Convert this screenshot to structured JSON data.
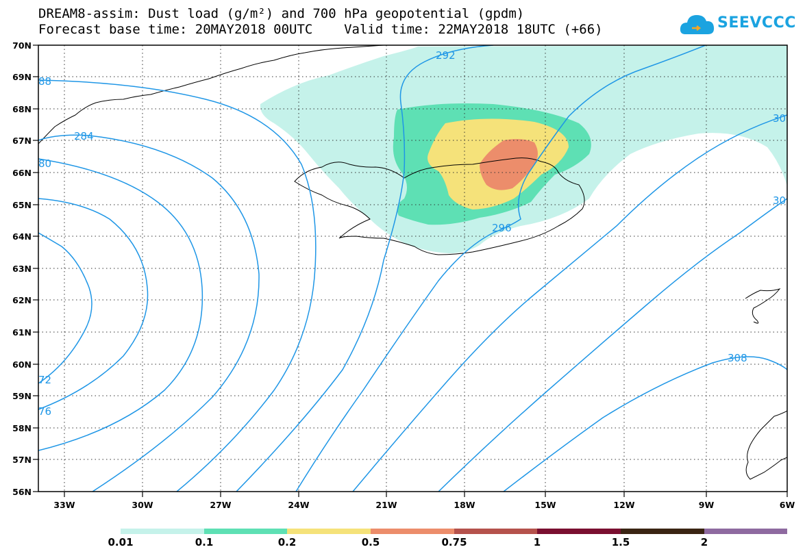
{
  "header": {
    "title_line1": "DREAM8-assim: Dust load (g/m²) and 700 hPa geopotential (gpdm)",
    "title_line2": "Forecast base time: 20MAY2018 00UTC    Valid time: 22MAY2018 18UTC (+66)",
    "logo_text": "SEEVCCC"
  },
  "map": {
    "lat_labels": [
      "70N",
      "69N",
      "68N",
      "67N",
      "66N",
      "65N",
      "64N",
      "63N",
      "62N",
      "61N",
      "60N",
      "59N",
      "58N",
      "57N",
      "56N"
    ],
    "lon_labels": [
      "33W",
      "30W",
      "27W",
      "24W",
      "21W",
      "18W",
      "15W",
      "12W",
      "9W",
      "6W"
    ],
    "contour_labels": [
      "88",
      "284",
      "80",
      "292",
      "296",
      "308",
      "72",
      "76",
      "30",
      "30"
    ],
    "contour_color": "#1e96e6",
    "coastline_color": "#000000"
  },
  "colorbar": {
    "labels": [
      "0.01",
      "0.1",
      "0.2",
      "0.5",
      "0.75",
      "1",
      "1.5",
      "2"
    ],
    "colors": [
      "#c5f2ea",
      "#5ee0b4",
      "#f5e27a",
      "#ec8d6b",
      "#b5524c",
      "#7a0f30",
      "#3a2413",
      "#8e6aa0"
    ]
  }
}
